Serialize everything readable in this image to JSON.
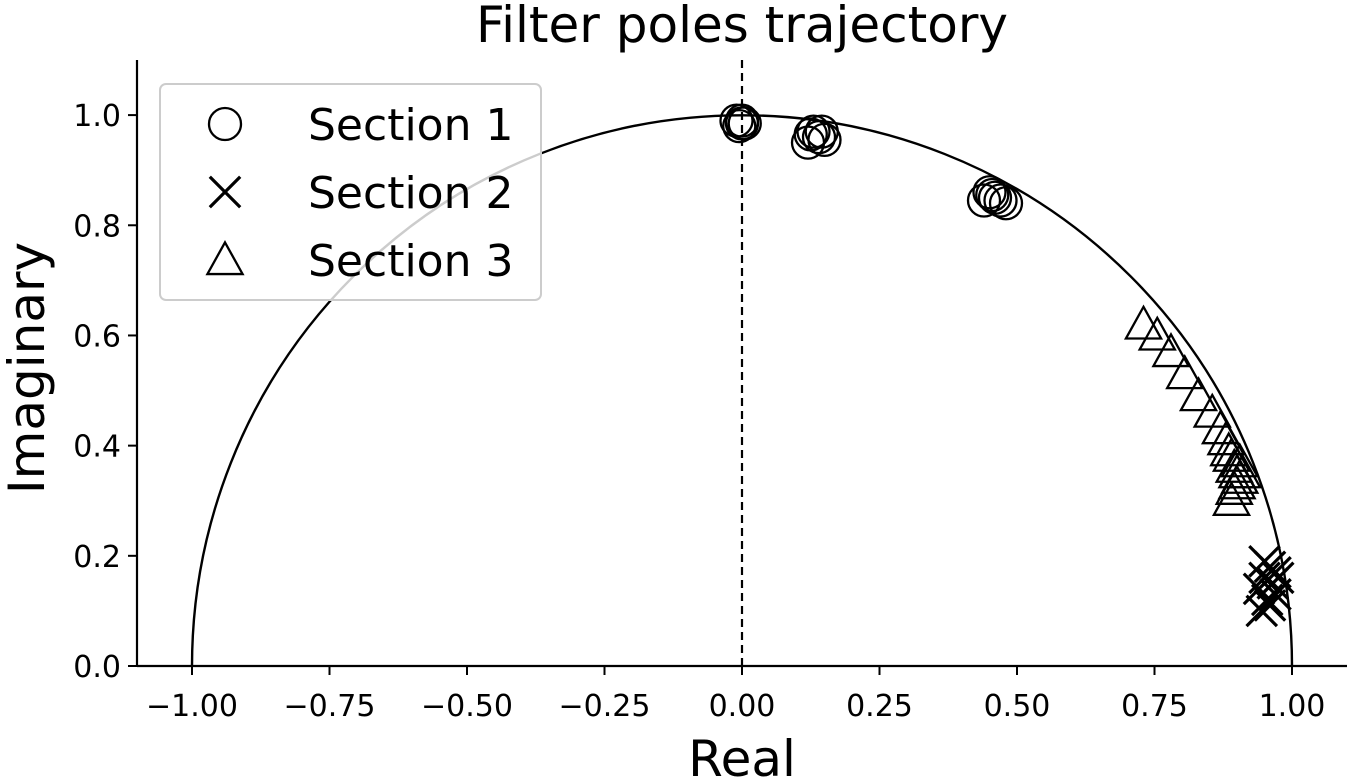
{
  "chart_data": {
    "type": "scatter",
    "title": "Filter poles trajectory",
    "xlabel": "Real",
    "ylabel": "Imaginary",
    "xlim": [
      -1.1,
      1.1
    ],
    "ylim": [
      0.0,
      1.1
    ],
    "xticks": [
      -1.0,
      -0.75,
      -0.5,
      -0.25,
      0.0,
      0.25,
      0.5,
      0.75,
      1.0
    ],
    "xtick_labels": [
      "−1.00",
      "−0.75",
      "−0.50",
      "−0.25",
      "0.00",
      "0.25",
      "0.50",
      "0.75",
      "1.00"
    ],
    "yticks": [
      0.0,
      0.2,
      0.4,
      0.6,
      0.8,
      1.0
    ],
    "ytick_labels": [
      "0.0",
      "0.2",
      "0.4",
      "0.6",
      "0.8",
      "1.0"
    ],
    "grid": false,
    "legend_position": "top-left",
    "reference_lines": [
      {
        "kind": "unit-circle-upper-half",
        "style": "solid"
      },
      {
        "kind": "vertical",
        "x": 0.0,
        "style": "dashed"
      }
    ],
    "series": [
      {
        "name": "Section 1",
        "marker": "circle",
        "points": [
          [
            -0.01,
            0.99
          ],
          [
            0.0,
            0.985
          ],
          [
            -0.005,
            0.98
          ],
          [
            0.005,
            0.985
          ],
          [
            0.0,
            0.99
          ],
          [
            0.12,
            0.95
          ],
          [
            0.13,
            0.97
          ],
          [
            0.14,
            0.96
          ],
          [
            0.15,
            0.955
          ],
          [
            0.125,
            0.965
          ],
          [
            0.145,
            0.97
          ],
          [
            0.44,
            0.845
          ],
          [
            0.45,
            0.86
          ],
          [
            0.46,
            0.85
          ],
          [
            0.47,
            0.845
          ],
          [
            0.48,
            0.84
          ],
          [
            0.455,
            0.855
          ]
        ]
      },
      {
        "name": "Section 2",
        "marker": "x",
        "points": [
          [
            0.94,
            0.14
          ],
          [
            0.95,
            0.16
          ],
          [
            0.96,
            0.18
          ],
          [
            0.955,
            0.12
          ],
          [
            0.965,
            0.15
          ],
          [
            0.97,
            0.17
          ],
          [
            0.945,
            0.1
          ],
          [
            0.96,
            0.11
          ],
          [
            0.97,
            0.13
          ],
          [
            0.95,
            0.19
          ],
          [
            0.975,
            0.16
          ]
        ]
      },
      {
        "name": "Section 3",
        "marker": "triangle",
        "points": [
          [
            0.73,
            0.62
          ],
          [
            0.755,
            0.6
          ],
          [
            0.78,
            0.57
          ],
          [
            0.805,
            0.53
          ],
          [
            0.83,
            0.49
          ],
          [
            0.855,
            0.46
          ],
          [
            0.87,
            0.43
          ],
          [
            0.88,
            0.41
          ],
          [
            0.885,
            0.39
          ],
          [
            0.89,
            0.38
          ],
          [
            0.895,
            0.36
          ],
          [
            0.9,
            0.35
          ],
          [
            0.905,
            0.34
          ],
          [
            0.9,
            0.33
          ],
          [
            0.895,
            0.32
          ],
          [
            0.89,
            0.3
          ],
          [
            0.905,
            0.37
          ],
          [
            0.91,
            0.35
          ]
        ]
      }
    ]
  }
}
